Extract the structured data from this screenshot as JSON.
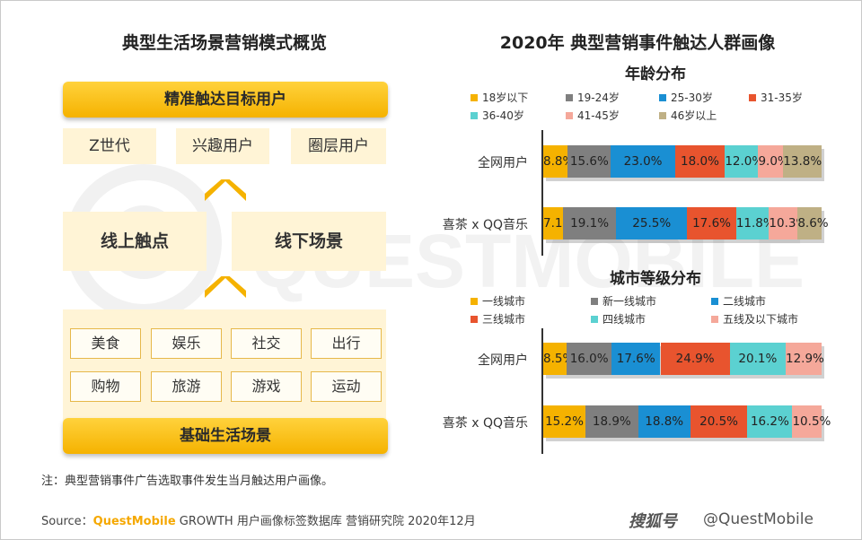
{
  "left": {
    "title": "典型生活场景营销模式概览",
    "top_bar": "精准触达目标用户",
    "user_tags": [
      "Z世代",
      "兴趣用户",
      "圈层用户"
    ],
    "online": "线上触点",
    "offline": "线下场景",
    "scenes_row1": [
      "美食",
      "娱乐",
      "社交",
      "出行"
    ],
    "scenes_row2": [
      "购物",
      "旅游",
      "游戏",
      "运动"
    ],
    "bottom_bar": "基础生活场景"
  },
  "right": {
    "title": "2020年 典型营销事件触达人群画像"
  },
  "watermark": "QUESTMOBILE",
  "note": "注：典型营销事件广告选取事件发生当月触达用户画像。",
  "source": {
    "prefix": "Source：",
    "brand": "QuestMobile",
    "text": " GROWTH 用户画像标签数据库 营销研究院 2020年12月"
  },
  "credit": "@QuestMobile",
  "credit_brand": "搜狐号",
  "chart_data": [
    {
      "type": "bar",
      "orientation": "horizontal",
      "stacked": true,
      "title": "年龄分布",
      "categories": [
        "全网用户",
        "喜茶 x QQ音乐"
      ],
      "series": [
        {
          "name": "18岁以下",
          "color": "#f5b200",
          "values": [
            8.8,
            7.1
          ]
        },
        {
          "name": "19-24岁",
          "color": "#7f7f7f",
          "values": [
            15.6,
            19.1
          ]
        },
        {
          "name": "25-30岁",
          "color": "#1a8fd3",
          "values": [
            23.0,
            25.5
          ]
        },
        {
          "name": "31-35岁",
          "color": "#e8542e",
          "values": [
            18.0,
            17.6
          ]
        },
        {
          "name": "36-40岁",
          "color": "#5bd1d1",
          "values": [
            12.0,
            11.8
          ]
        },
        {
          "name": "41-45岁",
          "color": "#f5a89a",
          "values": [
            9.0,
            10.3
          ]
        },
        {
          "name": "46岁以上",
          "color": "#bfb085",
          "values": [
            13.8,
            8.6
          ]
        }
      ],
      "xlim": [
        0,
        100
      ]
    },
    {
      "type": "bar",
      "orientation": "horizontal",
      "stacked": true,
      "title": "城市等级分布",
      "categories": [
        "全网用户",
        "喜茶 x QQ音乐"
      ],
      "series": [
        {
          "name": "一线城市",
          "color": "#f5b200",
          "values": [
            8.5,
            15.2
          ]
        },
        {
          "name": "新一线城市",
          "color": "#7f7f7f",
          "values": [
            16.0,
            18.9
          ]
        },
        {
          "name": "二线城市",
          "color": "#1a8fd3",
          "values": [
            17.6,
            18.8
          ]
        },
        {
          "name": "三线城市",
          "color": "#e8542e",
          "values": [
            24.9,
            20.5
          ]
        },
        {
          "name": "四线城市",
          "color": "#5bd1d1",
          "values": [
            20.1,
            16.2
          ]
        },
        {
          "name": "五线及以下城市",
          "color": "#f5a89a",
          "values": [
            12.9,
            10.5
          ]
        }
      ],
      "xlim": [
        0,
        100
      ]
    }
  ]
}
